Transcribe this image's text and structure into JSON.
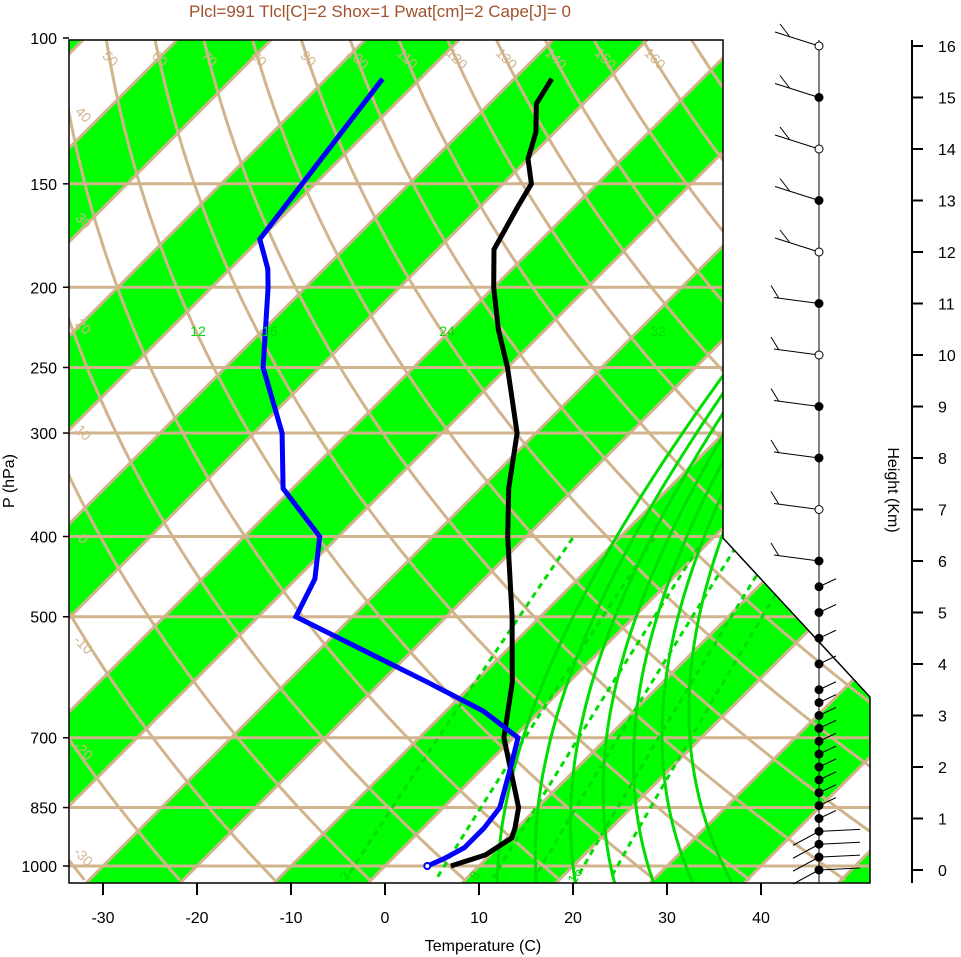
{
  "chart_data": {
    "type": "skew-t",
    "title": "Plcl=991 Tlcl[C]=2 Shox=1 Pwat[cm]=2 Cape[J]= 0",
    "xlabel": "Temperature (C)",
    "ylabel": "P (hPa)",
    "y2label": "Height (Km)",
    "x_ticks": [
      "-30",
      "-20",
      "-10",
      "0",
      "10",
      "20",
      "30",
      "40"
    ],
    "p_ticks": [
      "100",
      "150",
      "200",
      "250",
      "300",
      "400",
      "500",
      "700",
      "850",
      "1000"
    ],
    "height_ticks": [
      "0",
      "1",
      "2",
      "3",
      "4",
      "5",
      "6",
      "7",
      "8",
      "9",
      "10",
      "11",
      "12",
      "13",
      "14",
      "15",
      "16"
    ],
    "isotherm_labels": [
      "-30",
      "-20",
      "-10",
      "0",
      "10",
      "20",
      "30"
    ],
    "top_labels": [
      "50",
      "60",
      "70",
      "80",
      "90",
      "100",
      "110",
      "120",
      "130",
      "140",
      "150",
      "160"
    ],
    "left_labels": [
      "40",
      "30",
      "20",
      "10",
      "0",
      "-10",
      "-20",
      "-30"
    ],
    "mixing_ratio_labels": [
      "3",
      "8",
      "16"
    ],
    "moist_labels": [
      "12",
      "16",
      "24",
      "32"
    ],
    "colors": {
      "title": "#a0522d",
      "band": "#00ff00",
      "grid": "#d2b48c",
      "temperature": "#000000",
      "dewpoint": "#0000ff",
      "moist_adiabat": "#00dd00"
    },
    "temperature_profile": [
      [
        1000,
        7
      ],
      [
        970,
        9.5
      ],
      [
        925,
        10.5
      ],
      [
        900,
        9.8
      ],
      [
        850,
        8
      ],
      [
        700,
        -1
      ],
      [
        600,
        -6
      ],
      [
        500,
        -13
      ],
      [
        400,
        -22
      ],
      [
        350,
        -27
      ],
      [
        300,
        -32
      ],
      [
        250,
        -40
      ],
      [
        225,
        -45
      ],
      [
        200,
        -50
      ],
      [
        180,
        -54
      ],
      [
        160,
        -56
      ],
      [
        150,
        -57
      ],
      [
        140,
        -60
      ],
      [
        130,
        -62
      ],
      [
        120,
        -65
      ],
      [
        112,
        -66
      ]
    ],
    "dewpoint_profile": [
      [
        1000,
        4.5
      ],
      [
        980,
        5.5
      ],
      [
        950,
        6.5
      ],
      [
        900,
        6.5
      ],
      [
        850,
        6
      ],
      [
        750,
        2.5
      ],
      [
        700,
        0.5
      ],
      [
        650,
        -6
      ],
      [
        600,
        -15
      ],
      [
        500,
        -36
      ],
      [
        450,
        -38
      ],
      [
        400,
        -42
      ],
      [
        350,
        -51
      ],
      [
        300,
        -57
      ],
      [
        250,
        -66
      ],
      [
        200,
        -74
      ],
      [
        190,
        -76
      ],
      [
        175,
        -80
      ],
      [
        112,
        -84
      ]
    ],
    "wind_height_points_km": [
      0,
      0.25,
      0.5,
      0.75,
      1,
      1.25,
      1.5,
      1.75,
      2,
      2.25,
      2.5,
      2.75,
      3,
      3.25,
      3.5,
      4,
      4.5,
      5,
      5.5,
      6,
      7,
      8,
      9,
      10,
      11,
      12,
      13,
      14,
      15,
      16
    ]
  }
}
